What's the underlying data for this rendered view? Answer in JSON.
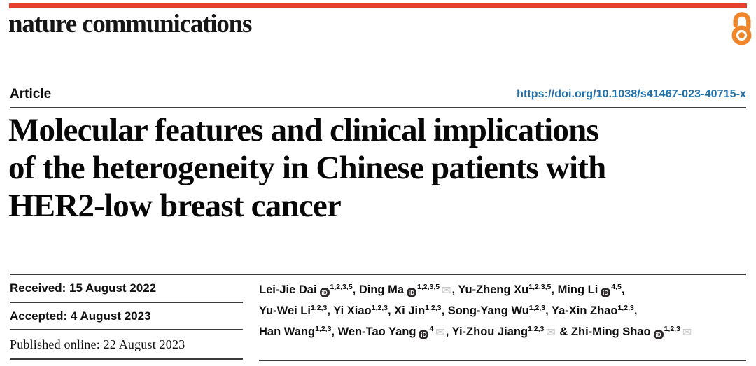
{
  "masthead": {
    "brand": "nature communications"
  },
  "header": {
    "article_label": "Article",
    "doi": "https://doi.org/10.1038/s41467-023-40715-x"
  },
  "title": {
    "full": "Molecular features and clinical implications of the heterogeneity in Chinese patients with HER2-low breast cancer",
    "lines": [
      "Molecular features and clinical implications",
      "of the heterogeneity in Chinese patients with",
      "HER2-low breast cancer"
    ]
  },
  "dates": [
    {
      "text": "Received: 15 August 2022",
      "font": "sans"
    },
    {
      "text": "Accepted: 4 August 2023",
      "font": "sans"
    },
    {
      "text": "Published online: 22 August 2023",
      "font": "serif"
    }
  ],
  "authors": {
    "lines": [
      [
        {
          "name": "Lei-Jie Dai",
          "orcid": true,
          "sup": "1,2,3,5",
          "sep": ", "
        },
        {
          "name": "Ding Ma",
          "orcid": true,
          "sup": "1,2,3,5",
          "email": true,
          "sep": ", "
        },
        {
          "name": "Yu-Zheng Xu",
          "sup": "1,2,3,5",
          "sep": ", "
        },
        {
          "name": "Ming Li",
          "orcid": true,
          "sup": "4,5",
          "sep": ","
        }
      ],
      [
        {
          "name": "Yu-Wei Li",
          "sup": "1,2,3",
          "sep": ", "
        },
        {
          "name": "Yi Xiao",
          "sup": "1,2,3",
          "sep": ", "
        },
        {
          "name": "Xi Jin",
          "sup": "1,2,3",
          "sep": ", "
        },
        {
          "name": "Song-Yang Wu",
          "sup": "1,2,3",
          "sep": ", "
        },
        {
          "name": "Ya-Xin Zhao",
          "sup": "1,2,3",
          "sep": ","
        }
      ],
      [
        {
          "name": "Han Wang",
          "sup": "1,2,3",
          "sep": ", "
        },
        {
          "name": "Wen-Tao Yang",
          "orcid": true,
          "sup": "4",
          "email": true,
          "sep": ", "
        },
        {
          "name": "Yi-Zhou Jiang",
          "sup": "1,2,3",
          "email": true,
          "sep": " & "
        },
        {
          "name": "Zhi-Ming Shao",
          "orcid": true,
          "sup": "1,2,3",
          "email": true
        }
      ]
    ]
  },
  "icons": {
    "orcid_text": "iD",
    "envelope_glyph": "✉",
    "open_access_meaning": "open-access"
  },
  "colors": {
    "brand_red": "#e6402c",
    "oa_orange": "#f0862a",
    "link_blue": "#1e71ad",
    "rule_dark": "#3a3a3a",
    "orcid_dark": "#2b2728",
    "envelope_gray": "#c6c6c6"
  }
}
